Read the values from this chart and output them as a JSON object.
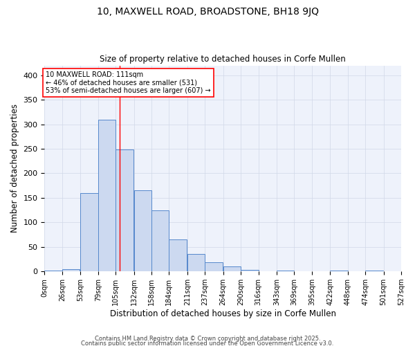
{
  "title_line1": "10, MAXWELL ROAD, BROADSTONE, BH18 9JQ",
  "title_line2": "Size of property relative to detached houses in Corfe Mullen",
  "xlabel": "Distribution of detached houses by size in Corfe Mullen",
  "ylabel": "Number of detached properties",
  "bin_edges": [
    0,
    26,
    53,
    79,
    105,
    132,
    158,
    184,
    211,
    237,
    264,
    290,
    316,
    343,
    369,
    395,
    422,
    448,
    474,
    501,
    527
  ],
  "bar_heights": [
    2,
    5,
    160,
    310,
    248,
    165,
    125,
    65,
    35,
    18,
    10,
    3,
    0,
    2,
    0,
    0,
    2,
    0,
    2,
    1
  ],
  "bar_facecolor": "#ccd9f0",
  "bar_edgecolor": "#5588cc",
  "grid_color": "#d0d8e8",
  "bg_color": "#eef2fb",
  "red_line_x": 111,
  "annotation_text": "10 MAXWELL ROAD: 111sqm\n← 46% of detached houses are smaller (531)\n53% of semi-detached houses are larger (607) →",
  "annotation_box_color": "white",
  "annotation_box_edgecolor": "red",
  "ylim": [
    0,
    420
  ],
  "yticks": [
    0,
    50,
    100,
    150,
    200,
    250,
    300,
    350,
    400
  ],
  "footnote1": "Contains HM Land Registry data © Crown copyright and database right 2025.",
  "footnote2": "Contains public sector information licensed under the Open Government Licence v3.0."
}
